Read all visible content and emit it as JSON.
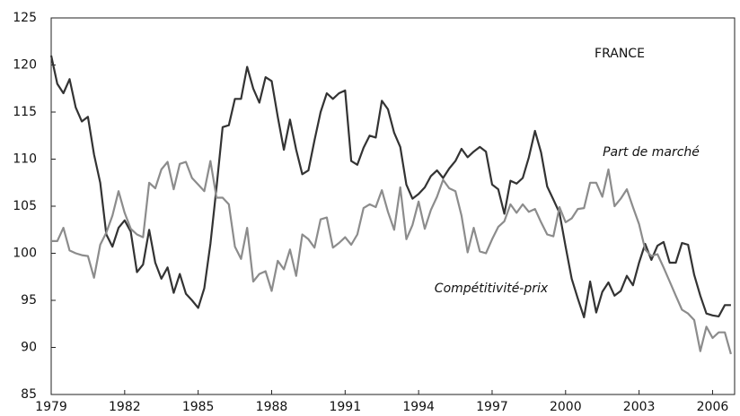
{
  "chart_data": {
    "type": "line",
    "annotation": "FRANCE",
    "x": [
      1979,
      1979.25,
      1979.5,
      1979.75,
      1980,
      1980.25,
      1980.5,
      1980.75,
      1981,
      1981.25,
      1981.5,
      1981.75,
      1982,
      1982.25,
      1982.5,
      1982.75,
      1983,
      1983.25,
      1983.5,
      1983.75,
      1984,
      1984.25,
      1984.5,
      1984.75,
      1985,
      1985.25,
      1985.5,
      1985.75,
      1986,
      1986.25,
      1986.5,
      1986.75,
      1987,
      1987.25,
      1987.5,
      1987.75,
      1988,
      1988.25,
      1988.5,
      1988.75,
      1989,
      1989.25,
      1989.5,
      1989.75,
      1990,
      1990.25,
      1990.5,
      1990.75,
      1991,
      1991.25,
      1991.5,
      1991.75,
      1992,
      1992.25,
      1992.5,
      1992.75,
      1993,
      1993.25,
      1993.5,
      1993.75,
      1994,
      1994.25,
      1994.5,
      1994.75,
      1995,
      1995.25,
      1995.5,
      1995.75,
      1996,
      1996.25,
      1996.5,
      1996.75,
      1997,
      1997.25,
      1997.5,
      1997.75,
      1998,
      1998.25,
      1998.5,
      1998.75,
      1999,
      1999.25,
      1999.5,
      1999.75,
      2000,
      2000.25,
      2000.5,
      2000.75,
      2001,
      2001.25,
      2001.5,
      2001.75,
      2002,
      2002.25,
      2002.5,
      2002.75,
      2003,
      2003.25,
      2003.5,
      2003.75,
      2004,
      2004.25,
      2004.5,
      2004.75,
      2005,
      2005.25,
      2005.5,
      2005.75,
      2006,
      2006.25,
      2006.5,
      2006.75
    ],
    "series": [
      {
        "name": "Part de marché",
        "color": "#333333",
        "values": [
          121,
          118,
          117,
          118.5,
          115.5,
          114,
          114.5,
          110.5,
          107.5,
          102,
          100.7,
          102.7,
          103.5,
          102.3,
          98,
          98.8,
          102.5,
          99,
          97.3,
          98.5,
          95.8,
          97.8,
          95.7,
          95,
          94.2,
          96.3,
          101,
          107,
          113.4,
          113.6,
          116.4,
          116.4,
          119.8,
          117.5,
          116,
          118.7,
          118.3,
          114.5,
          111,
          114.2,
          111,
          108.4,
          108.8,
          112,
          115,
          117,
          116.4,
          117,
          117.3,
          109.8,
          109.4,
          111.2,
          112.5,
          112.3,
          116.2,
          115.3,
          112.8,
          111.3,
          107.3,
          105.8,
          106.3,
          107,
          108.2,
          108.8,
          108,
          109,
          109.8,
          111.1,
          110.2,
          110.8,
          111.3,
          110.8,
          107.3,
          106.8,
          104.2,
          107.7,
          107.4,
          108,
          110.2,
          113,
          110.7,
          107.1,
          105.7,
          104.3,
          100.7,
          97.3,
          95.2,
          93.2,
          97,
          93.7,
          95.9,
          96.9,
          95.5,
          96,
          97.6,
          96.6,
          99,
          101,
          99.3,
          100.8,
          101.2,
          99,
          99,
          101.1,
          100.9,
          97.7,
          95.5,
          93.6,
          93.4,
          93.3,
          94.5,
          94.5
        ]
      },
      {
        "name": "Compétitivité-prix",
        "color": "#8c8c8c",
        "values": [
          101.3,
          101.3,
          102.7,
          100.3,
          100,
          99.8,
          99.7,
          97.4,
          100.9,
          102.2,
          104,
          106.6,
          104.3,
          102.6,
          102,
          101.7,
          107.5,
          106.9,
          108.9,
          109.7,
          106.8,
          109.5,
          109.7,
          108,
          107.3,
          106.6,
          109.8,
          105.9,
          105.9,
          105.2,
          100.7,
          99.4,
          102.7,
          97,
          97.8,
          98.1,
          96,
          99.2,
          98.3,
          100.4,
          97.6,
          102,
          101.5,
          100.6,
          103.6,
          103.8,
          100.6,
          101.1,
          101.7,
          100.9,
          102,
          104.8,
          105.2,
          104.9,
          106.7,
          104.4,
          102.5,
          107,
          101.5,
          103,
          105.5,
          102.6,
          104.6,
          106,
          107.8,
          106.9,
          106.6,
          104,
          100.1,
          102.7,
          100.2,
          100,
          101.5,
          102.8,
          103.4,
          105.2,
          104.3,
          105.2,
          104.4,
          104.7,
          103.3,
          102,
          101.8,
          104.9,
          103.3,
          103.7,
          104.7,
          104.8,
          107.5,
          107.5,
          106,
          108.9,
          105,
          105.8,
          106.8,
          104.9,
          103.1,
          100.4,
          99.7,
          99.9,
          98.5,
          97,
          95.5,
          94,
          93.6,
          92.9,
          89.6,
          92.2,
          91,
          91.6,
          91.6,
          89.3
        ]
      }
    ],
    "xlim": [
      1979,
      2006.9
    ],
    "xticks": [
      1979,
      1982,
      1985,
      1988,
      1991,
      1994,
      1997,
      2000,
      2003,
      2006
    ],
    "ylim": [
      85,
      125
    ],
    "yticks": [
      85,
      90,
      95,
      100,
      105,
      110,
      115,
      120,
      125
    ]
  }
}
